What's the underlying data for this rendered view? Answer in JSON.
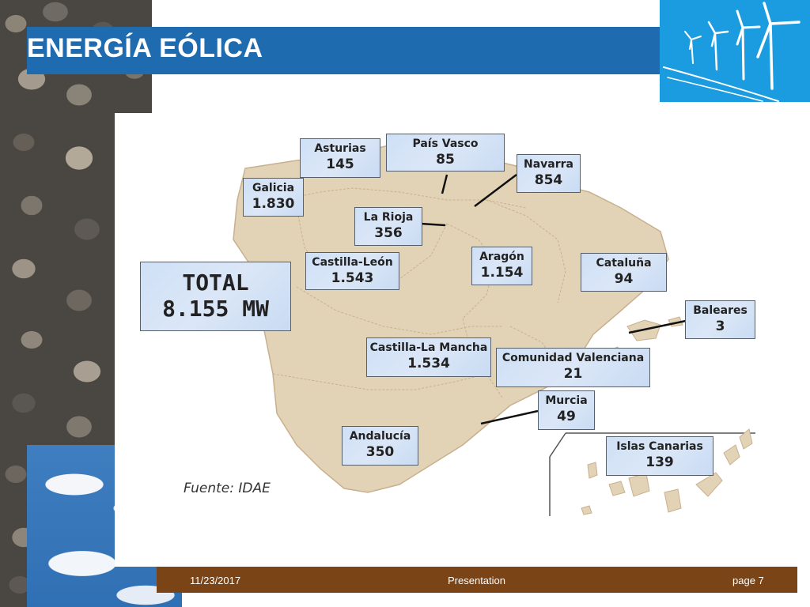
{
  "slide": {
    "title": "ENERGÍA EÓLICA",
    "footer": {
      "date": "11/23/2017",
      "center": "Presentation",
      "page": "page 7"
    }
  },
  "map": {
    "total": {
      "label": "TOTAL",
      "value": "8.155 MW"
    },
    "source": "Fuente: IDAE",
    "regions": [
      {
        "name": "Asturias",
        "value": "145"
      },
      {
        "name": "País Vasco",
        "value": "85"
      },
      {
        "name": "Navarra",
        "value": "854"
      },
      {
        "name": "Galicia",
        "value": "1.830"
      },
      {
        "name": "La Rioja",
        "value": "356"
      },
      {
        "name": "Castilla-León",
        "value": "1.543"
      },
      {
        "name": "Aragón",
        "value": "1.154"
      },
      {
        "name": "Cataluña",
        "value": "94"
      },
      {
        "name": "Baleares",
        "value": "3"
      },
      {
        "name": "Castilla-La Mancha",
        "value": "1.534"
      },
      {
        "name": "Comunidad Valenciana",
        "value": "21"
      },
      {
        "name": "Murcia",
        "value": "49"
      },
      {
        "name": "Andalucía",
        "value": "350"
      },
      {
        "name": "Islas Canarias",
        "value": "139"
      }
    ],
    "colors": {
      "land": "#e3d3b6",
      "land_border": "#c8b08e",
      "label_box": "#d2e2f6",
      "title_bar": "#1f6bb0",
      "footer_bar": "#7a4416"
    }
  }
}
